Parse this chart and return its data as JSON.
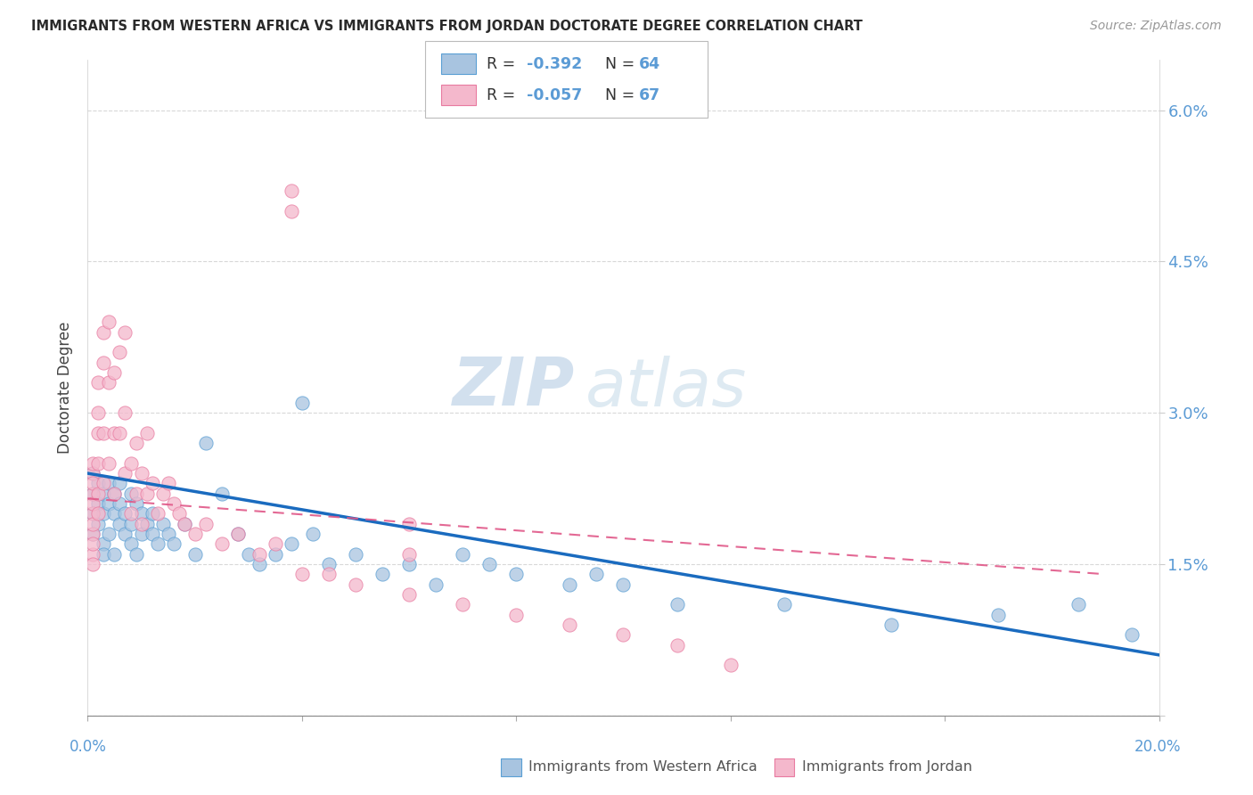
{
  "title": "IMMIGRANTS FROM WESTERN AFRICA VS IMMIGRANTS FROM JORDAN DOCTORATE DEGREE CORRELATION CHART",
  "source": "Source: ZipAtlas.com",
  "ylabel": "Doctorate Degree",
  "xlim": [
    0.0,
    0.2
  ],
  "ylim": [
    0.0,
    0.065
  ],
  "right_yticks": [
    0.0,
    0.015,
    0.03,
    0.045,
    0.06
  ],
  "right_yticklabels": [
    "",
    "1.5%",
    "3.0%",
    "4.5%",
    "6.0%"
  ],
  "legend_r1": "-0.392",
  "legend_n1": "64",
  "legend_r2": "-0.057",
  "legend_n2": "67",
  "watermark_zip": "ZIP",
  "watermark_atlas": "atlas",
  "blue_face": "#a8c4e0",
  "blue_edge": "#5a9fd4",
  "pink_face": "#f4b8cc",
  "pink_edge": "#e87aa0",
  "blue_line": "#1a6bbf",
  "pink_line": "#e05888",
  "axis_blue": "#5b9bd5",
  "grid_color": "#d8d8d8",
  "title_color": "#2a2a2a",
  "blue_line_start_y": 0.024,
  "blue_line_end_y": 0.006,
  "pink_line_start_y": 0.0215,
  "pink_line_end_y": 0.014,
  "blue_x": [
    0.001,
    0.001,
    0.001,
    0.001,
    0.002,
    0.002,
    0.002,
    0.003,
    0.003,
    0.003,
    0.003,
    0.004,
    0.004,
    0.004,
    0.005,
    0.005,
    0.005,
    0.006,
    0.006,
    0.006,
    0.007,
    0.007,
    0.008,
    0.008,
    0.008,
    0.009,
    0.009,
    0.01,
    0.01,
    0.011,
    0.012,
    0.012,
    0.013,
    0.014,
    0.015,
    0.016,
    0.018,
    0.02,
    0.022,
    0.025,
    0.028,
    0.03,
    0.032,
    0.035,
    0.038,
    0.04,
    0.042,
    0.045,
    0.05,
    0.055,
    0.06,
    0.065,
    0.07,
    0.075,
    0.08,
    0.09,
    0.095,
    0.1,
    0.11,
    0.13,
    0.15,
    0.17,
    0.185,
    0.195
  ],
  "blue_y": [
    0.022,
    0.02,
    0.018,
    0.024,
    0.023,
    0.019,
    0.021,
    0.022,
    0.017,
    0.02,
    0.016,
    0.021,
    0.018,
    0.023,
    0.02,
    0.022,
    0.016,
    0.019,
    0.021,
    0.023,
    0.018,
    0.02,
    0.022,
    0.017,
    0.019,
    0.021,
    0.016,
    0.02,
    0.018,
    0.019,
    0.018,
    0.02,
    0.017,
    0.019,
    0.018,
    0.017,
    0.019,
    0.016,
    0.027,
    0.022,
    0.018,
    0.016,
    0.015,
    0.016,
    0.017,
    0.031,
    0.018,
    0.015,
    0.016,
    0.014,
    0.015,
    0.013,
    0.016,
    0.015,
    0.014,
    0.013,
    0.014,
    0.013,
    0.011,
    0.011,
    0.009,
    0.01,
    0.011,
    0.008
  ],
  "pink_x": [
    0.001,
    0.001,
    0.001,
    0.001,
    0.001,
    0.001,
    0.001,
    0.001,
    0.001,
    0.001,
    0.001,
    0.002,
    0.002,
    0.002,
    0.002,
    0.002,
    0.002,
    0.003,
    0.003,
    0.003,
    0.003,
    0.004,
    0.004,
    0.004,
    0.005,
    0.005,
    0.005,
    0.006,
    0.006,
    0.007,
    0.007,
    0.007,
    0.008,
    0.008,
    0.009,
    0.009,
    0.01,
    0.01,
    0.011,
    0.011,
    0.012,
    0.013,
    0.014,
    0.015,
    0.016,
    0.017,
    0.018,
    0.02,
    0.022,
    0.025,
    0.028,
    0.032,
    0.035,
    0.04,
    0.045,
    0.05,
    0.06,
    0.07,
    0.08,
    0.09,
    0.1,
    0.11,
    0.12,
    0.038,
    0.038,
    0.06,
    0.06
  ],
  "pink_y": [
    0.022,
    0.02,
    0.018,
    0.024,
    0.019,
    0.021,
    0.016,
    0.023,
    0.017,
    0.025,
    0.015,
    0.03,
    0.033,
    0.022,
    0.028,
    0.02,
    0.025,
    0.038,
    0.035,
    0.028,
    0.023,
    0.039,
    0.033,
    0.025,
    0.034,
    0.028,
    0.022,
    0.036,
    0.028,
    0.038,
    0.03,
    0.024,
    0.025,
    0.02,
    0.027,
    0.022,
    0.024,
    0.019,
    0.028,
    0.022,
    0.023,
    0.02,
    0.022,
    0.023,
    0.021,
    0.02,
    0.019,
    0.018,
    0.019,
    0.017,
    0.018,
    0.016,
    0.017,
    0.014,
    0.014,
    0.013,
    0.012,
    0.011,
    0.01,
    0.009,
    0.008,
    0.007,
    0.005,
    0.052,
    0.05,
    0.019,
    0.016
  ]
}
